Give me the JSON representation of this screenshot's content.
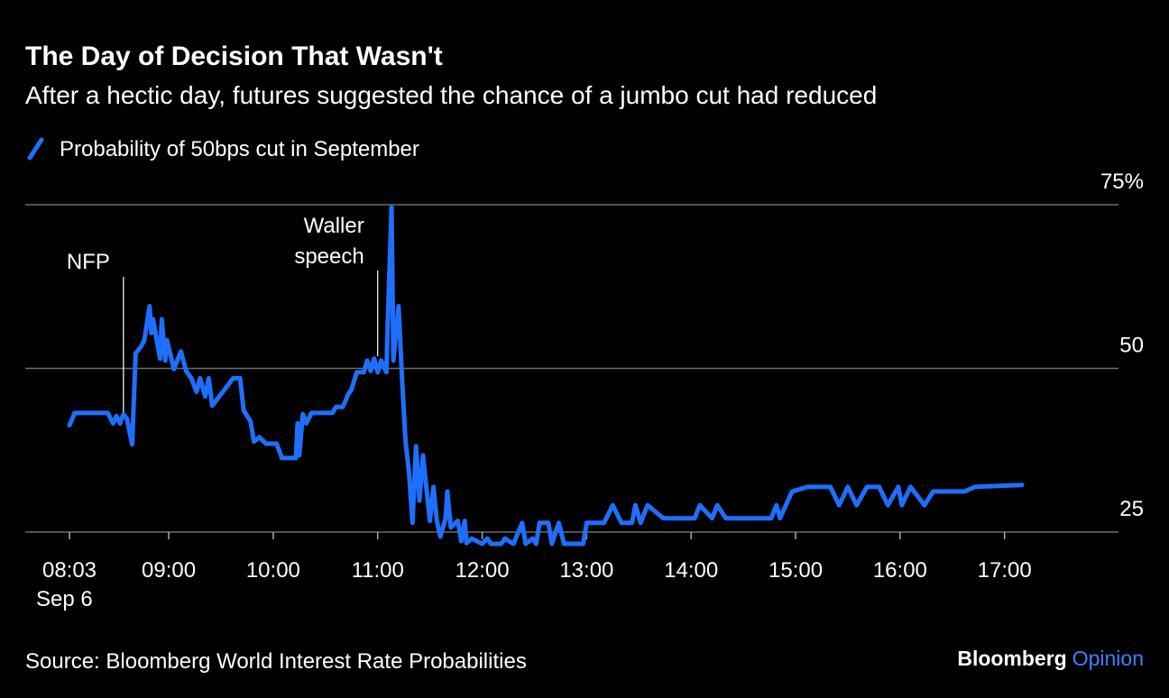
{
  "chart_data": {
    "type": "line",
    "title": "The Day of Decision That Wasn't",
    "subtitle": "After a hectic day, futures suggested the chance of a jumbo cut had reduced",
    "source": "Source: Bloomberg World Interest Rate Probabilities",
    "brand": "Bloomberg",
    "brand_section": "Opinion",
    "x": [
      "08:03",
      "08:06",
      "08:07",
      "08:25",
      "08:28",
      "08:30",
      "08:32",
      "08:34",
      "08:36",
      "08:39",
      "08:41",
      "08:44",
      "08:46",
      "08:49",
      "08:50",
      "08:51",
      "08:55",
      "08:56",
      "08:58",
      "08:59",
      "09:03",
      "09:07",
      "09:10",
      "09:13",
      "09:16",
      "09:18",
      "09:21",
      "09:23",
      "09:25",
      "09:31",
      "09:37",
      "09:41",
      "09:43",
      "09:47",
      "09:49",
      "09:52",
      "09:56",
      "10:02",
      "10:05",
      "10:13",
      "10:14",
      "10:15",
      "10:17",
      "10:19",
      "10:22",
      "10:34",
      "10:36",
      "10:40",
      "10:43",
      "10:45",
      "10:48",
      "10:52",
      "10:54",
      "10:56",
      "10:58",
      "11:00",
      "11:02",
      "11:05",
      "11:06",
      "11:08",
      "11:09",
      "11:12",
      "11:14",
      "11:16",
      "11:18",
      "11:20",
      "11:22",
      "11:24",
      "11:26",
      "11:30",
      "11:32",
      "11:34",
      "11:36",
      "11:39",
      "11:40",
      "11:42",
      "11:46",
      "11:48",
      "11:50",
      "11:51",
      "11:54",
      "12:00",
      "12:03",
      "12:05",
      "12:11",
      "12:13",
      "12:18",
      "12:23",
      "12:25",
      "12:29",
      "12:31",
      "12:33",
      "12:38",
      "12:40",
      "12:44",
      "12:47",
      "12:58",
      "13:00",
      "13:10",
      "13:15",
      "13:20",
      "13:26",
      "13:28",
      "13:31",
      "13:35",
      "13:44",
      "14:02",
      "14:05",
      "14:12",
      "14:15",
      "14:20",
      "14:46",
      "14:49",
      "14:51",
      "14:58",
      "15:07",
      "15:20",
      "15:25",
      "15:30",
      "15:35",
      "15:41",
      "15:48",
      "15:53",
      "15:59",
      "16:01",
      "16:06",
      "16:14",
      "16:19",
      "16:37",
      "16:43",
      "17:10"
    ],
    "series": [
      {
        "name": "Probability of 50bps cut in September",
        "color": "#1f6fff",
        "values": [
          41.3,
          43.2,
          43.2,
          43.2,
          41.6,
          42.7,
          41.6,
          43,
          42.3,
          38.4,
          52.3,
          53.3,
          54.3,
          59.5,
          55.4,
          57.5,
          51.5,
          57.5,
          51.2,
          54.3,
          49.9,
          52.6,
          49.6,
          48.5,
          46.4,
          48.5,
          45.7,
          48.5,
          44.3,
          46.4,
          48.5,
          48.5,
          43.6,
          41.9,
          38.8,
          39.5,
          38.5,
          38.5,
          36.3,
          36.3,
          41.6,
          36.7,
          43,
          41.6,
          43.2,
          43.2,
          44.1,
          44.1,
          46,
          46.8,
          49.4,
          49.4,
          51.2,
          49.6,
          51.5,
          49.4,
          51.2,
          49.4,
          58.8,
          74.6,
          51.2,
          59.5,
          48.5,
          38.8,
          34,
          26.4,
          38.1,
          29.8,
          36.7,
          26.7,
          31.9,
          26.7,
          24.3,
          27.1,
          31.2,
          25.7,
          26.7,
          23.6,
          26.7,
          23.3,
          24,
          23.2,
          24,
          23.2,
          23.2,
          24,
          23.2,
          26.4,
          23.2,
          24,
          23.2,
          26.4,
          26.4,
          23.2,
          26.4,
          23.2,
          23.2,
          26.4,
          26.4,
          29.1,
          26.4,
          26.4,
          29.1,
          26.4,
          29.1,
          27.1,
          27.1,
          29.1,
          27.1,
          29.1,
          27.1,
          27.1,
          29.1,
          27.1,
          31.2,
          31.9,
          31.9,
          29.1,
          31.9,
          29.1,
          31.9,
          31.9,
          29.1,
          31.9,
          29.1,
          31.9,
          29.1,
          31.2,
          31.2,
          31.9,
          32.2
        ]
      }
    ],
    "xlim": [
      "08:03",
      "17:10"
    ],
    "xticks": [
      "08:03",
      "09:00",
      "10:00",
      "11:00",
      "12:00",
      "13:00",
      "14:00",
      "15:00",
      "16:00",
      "17:00"
    ],
    "xtick_sublabel": "Sep 6",
    "ylim": [
      23,
      75
    ],
    "yticks": [
      25,
      50,
      {
        "value": 75,
        "label": "75%"
      }
    ],
    "grid": true,
    "annotations": [
      {
        "lines": [
          "NFP"
        ],
        "x": "08:34"
      },
      {
        "lines": [
          "Waller",
          "speech"
        ],
        "x": "11:00"
      }
    ]
  }
}
